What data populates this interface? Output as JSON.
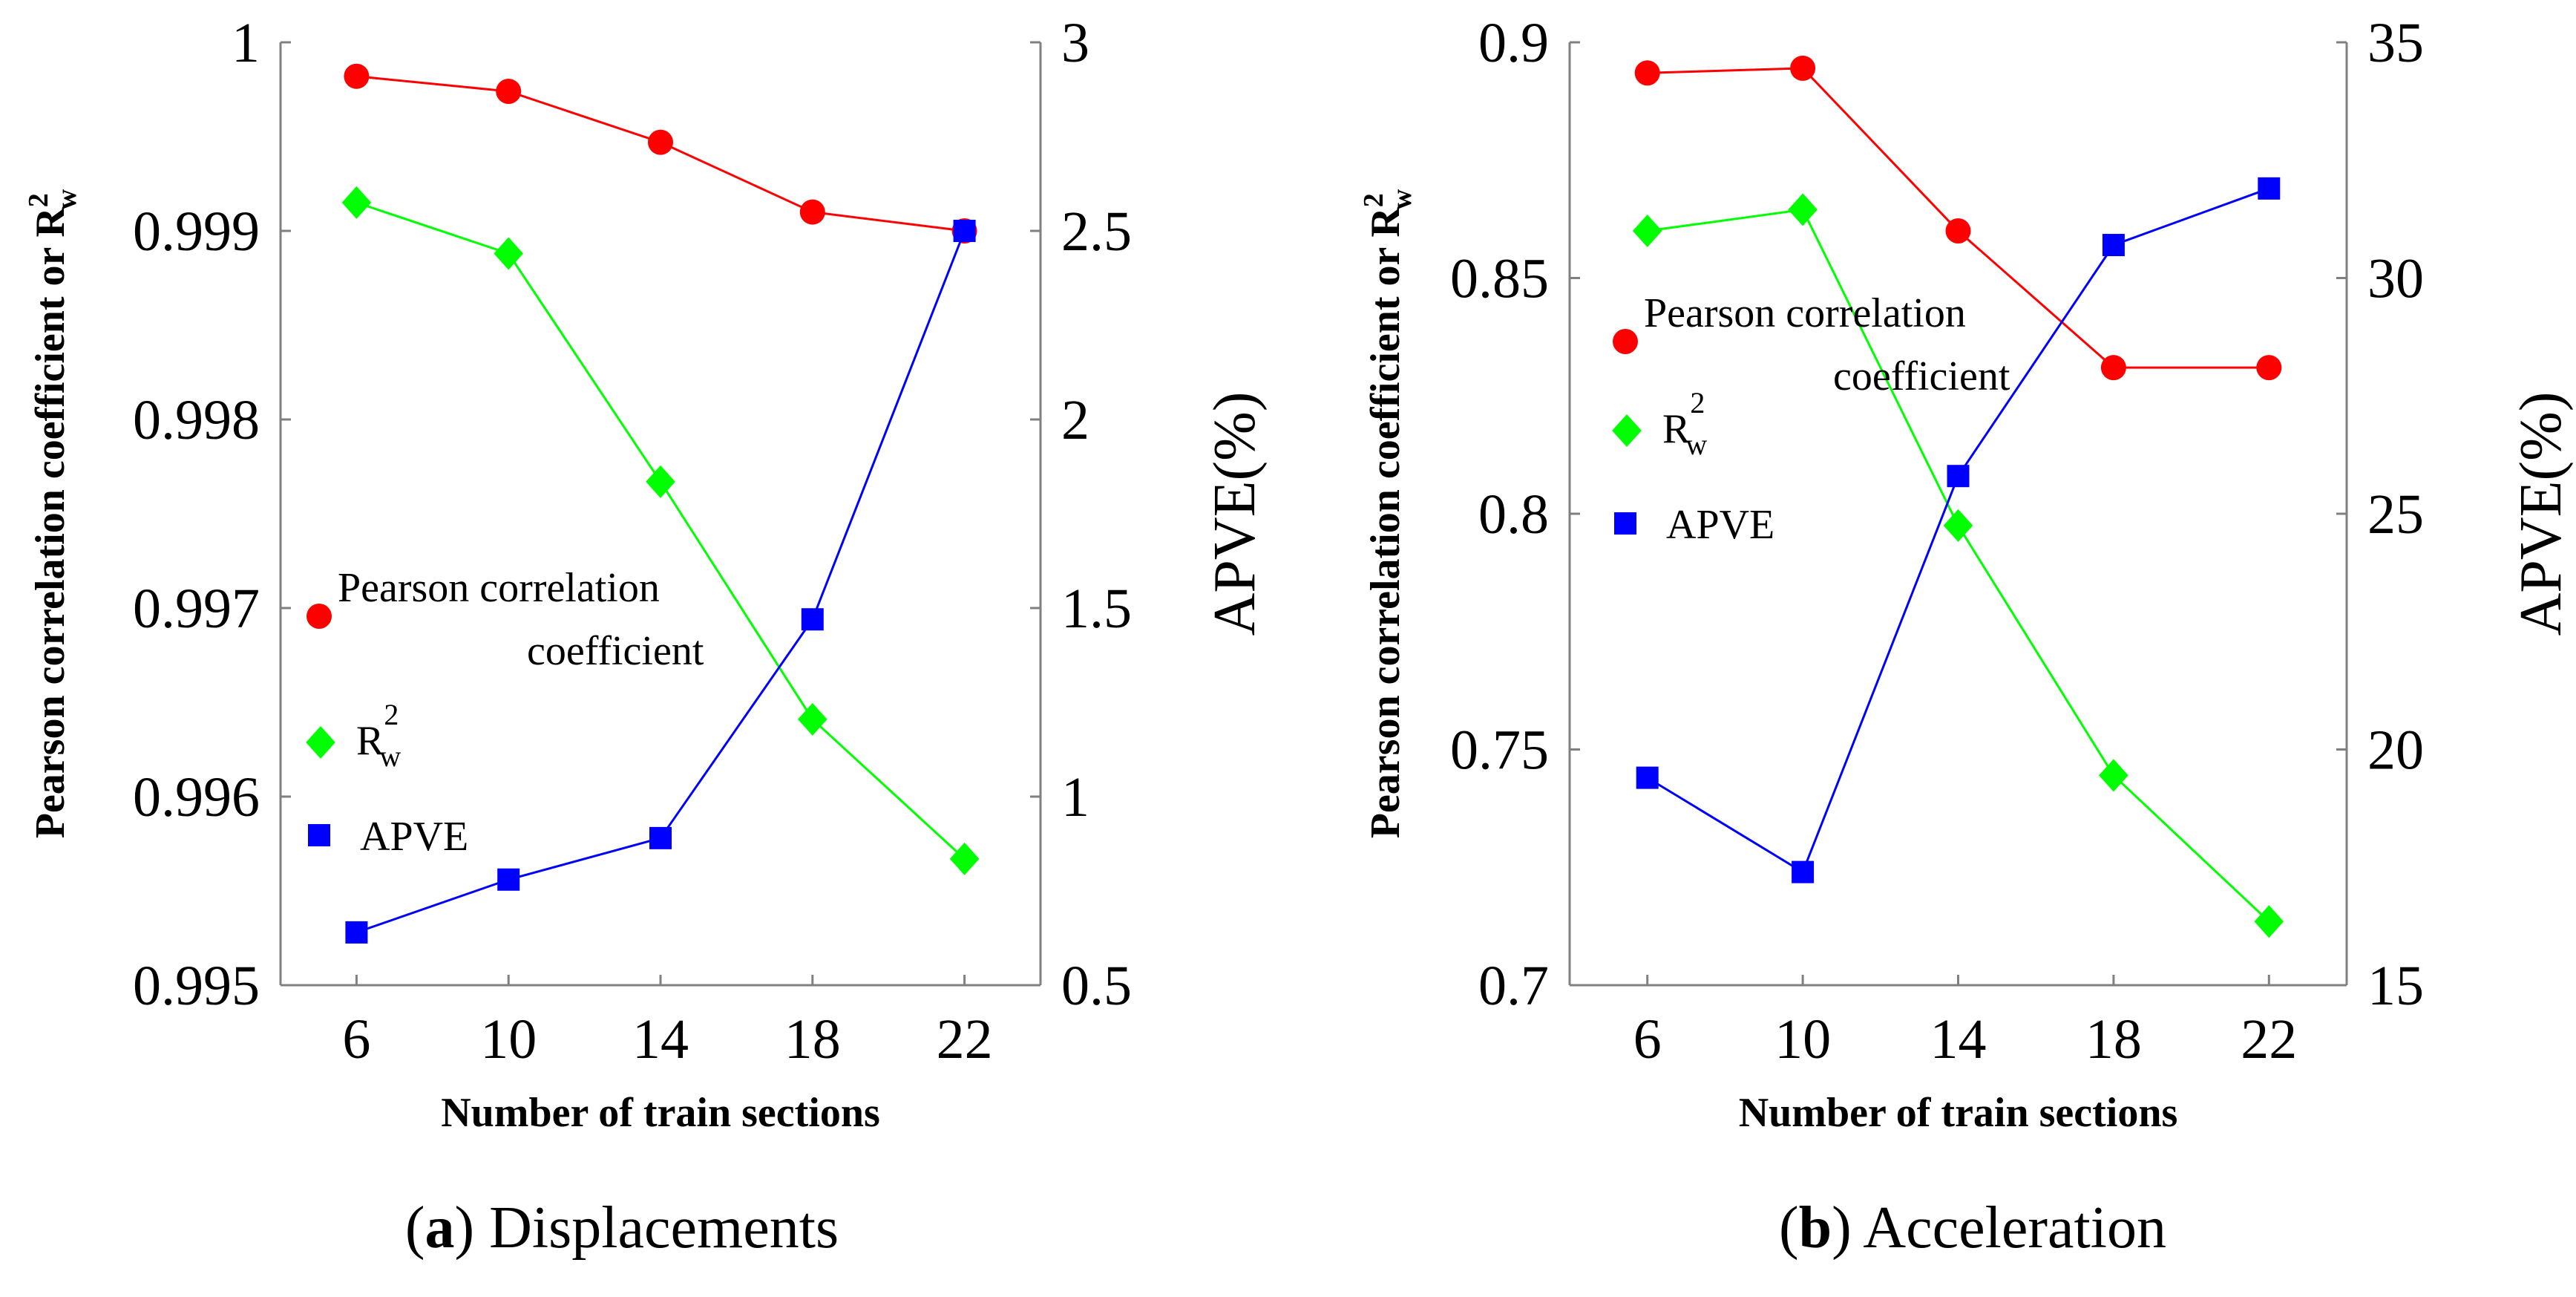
{
  "chart_data": [
    {
      "panel": "a",
      "type": "line",
      "caption": {
        "letter": "a",
        "text": " Displacements"
      },
      "xlabel": "Number of train sections",
      "ylabel_left": "Pearson correlation coefficient or R",
      "ylabel_left_sup": "2",
      "ylabel_left_sub": "w",
      "ylabel_right": "APVE(%)",
      "x": [
        6,
        10,
        14,
        18,
        22
      ],
      "xticks": [
        "6",
        "10",
        "14",
        "18",
        "22"
      ],
      "xlim": [
        4,
        24
      ],
      "ylim_left": [
        0.995,
        1.0
      ],
      "yticks_left": [
        "0.995",
        "0.996",
        "0.997",
        "0.998",
        "0.999",
        "1"
      ],
      "ylim_right": [
        0.5,
        3.0
      ],
      "yticks_right": [
        "0.5",
        "1",
        "1.5",
        "2",
        "2.5",
        "3"
      ],
      "series": [
        {
          "name": "Pearson correlation coefficient",
          "axis": "left",
          "marker": "circle",
          "color": "#ff0000",
          "values": [
            0.99982,
            0.99974,
            0.99947,
            0.9991,
            0.999
          ]
        },
        {
          "name": "R_w^2",
          "axis": "left",
          "marker": "diamond",
          "color": "#00ff00",
          "values": [
            0.99915,
            0.99888,
            0.99767,
            0.99641,
            0.99567
          ]
        },
        {
          "name": "APVE",
          "axis": "right",
          "marker": "square",
          "color": "#0000ff",
          "values": [
            0.64,
            0.78,
            0.89,
            1.47,
            2.5
          ]
        }
      ],
      "legend": {
        "pearson_line1": "Pearson correlation",
        "pearson_line2": "coefficient",
        "r2_base": "R",
        "r2_sup": "2",
        "r2_sub": "w",
        "apve": "APVE"
      }
    },
    {
      "panel": "b",
      "type": "line",
      "caption": {
        "letter": "b",
        "text": " Acceleration"
      },
      "xlabel": "Number of train sections",
      "ylabel_left": "Pearson correlation coefficient or R",
      "ylabel_left_sup": "2",
      "ylabel_left_sub": "w",
      "ylabel_right": "APVE(%)",
      "x": [
        6,
        10,
        14,
        18,
        22
      ],
      "xticks": [
        "6",
        "10",
        "14",
        "18",
        "22"
      ],
      "xlim": [
        4,
        24
      ],
      "ylim_left": [
        0.7,
        0.9
      ],
      "yticks_left": [
        "0.7",
        "0.75",
        "0.8",
        "0.85",
        "0.9"
      ],
      "ylim_right": [
        15,
        35
      ],
      "yticks_right": [
        "15",
        "20",
        "25",
        "30",
        "35"
      ],
      "series": [
        {
          "name": "Pearson correlation coefficient",
          "axis": "left",
          "marker": "circle",
          "color": "#ff0000",
          "values": [
            0.8935,
            0.8945,
            0.86,
            0.831,
            0.831
          ]
        },
        {
          "name": "R_w^2",
          "axis": "left",
          "marker": "diamond",
          "color": "#00ff00",
          "values": [
            0.86,
            0.8645,
            0.7975,
            0.7445,
            0.7135
          ]
        },
        {
          "name": "APVE",
          "axis": "right",
          "marker": "square",
          "color": "#0000ff",
          "values": [
            19.4,
            17.4,
            25.8,
            30.7,
            31.9
          ]
        }
      ],
      "legend": {
        "pearson_line1": "Pearson correlation",
        "pearson_line2": "coefficient",
        "r2_base": "R",
        "r2_sup": "2",
        "r2_sub": "w",
        "apve": "APVE"
      }
    }
  ]
}
